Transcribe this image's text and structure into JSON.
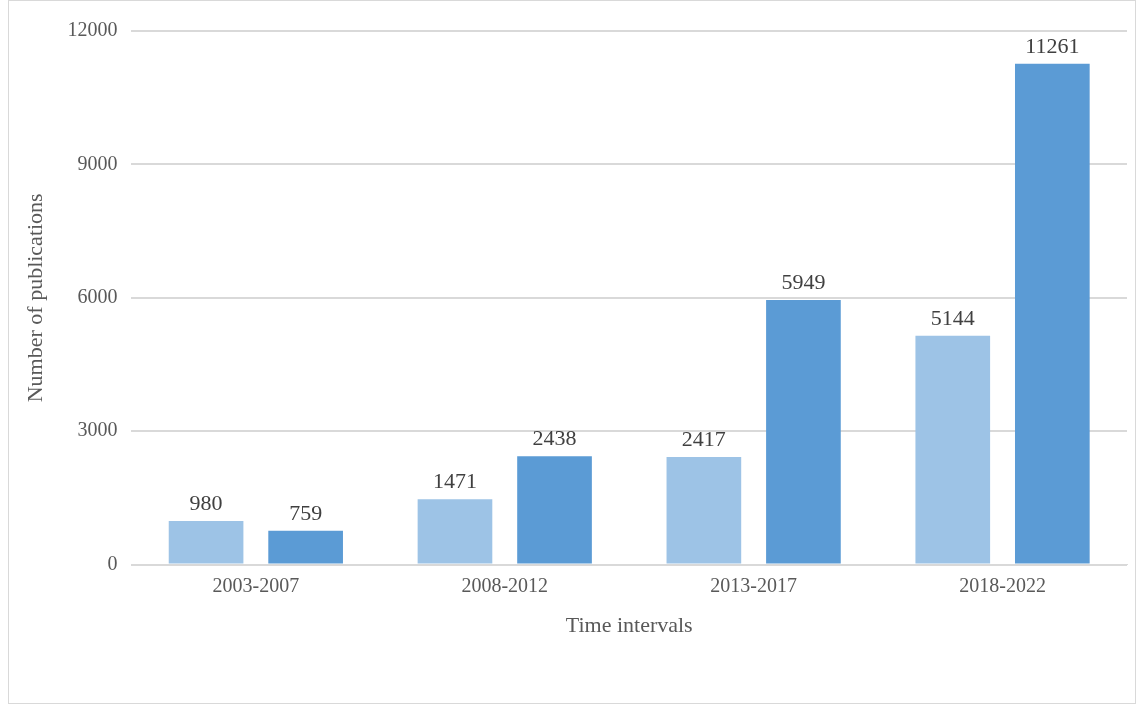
{
  "chart_data": {
    "type": "bar",
    "xlabel": "Time intervals",
    "ylabel": "Number of publications",
    "categories": [
      "2003-2007",
      "2008-2012",
      "2013-2017",
      "2018-2022"
    ],
    "series": [
      {
        "color": "#9dc3e6",
        "values": [
          980,
          1471,
          2417,
          5144
        ]
      },
      {
        "color": "#5b9bd5",
        "values": [
          759,
          2438,
          5949,
          11261
        ]
      }
    ],
    "ylim": [
      0,
      12000
    ],
    "yticks": [
      0,
      3000,
      6000,
      9000,
      12000
    ],
    "grid": "y",
    "data_labels": true
  }
}
